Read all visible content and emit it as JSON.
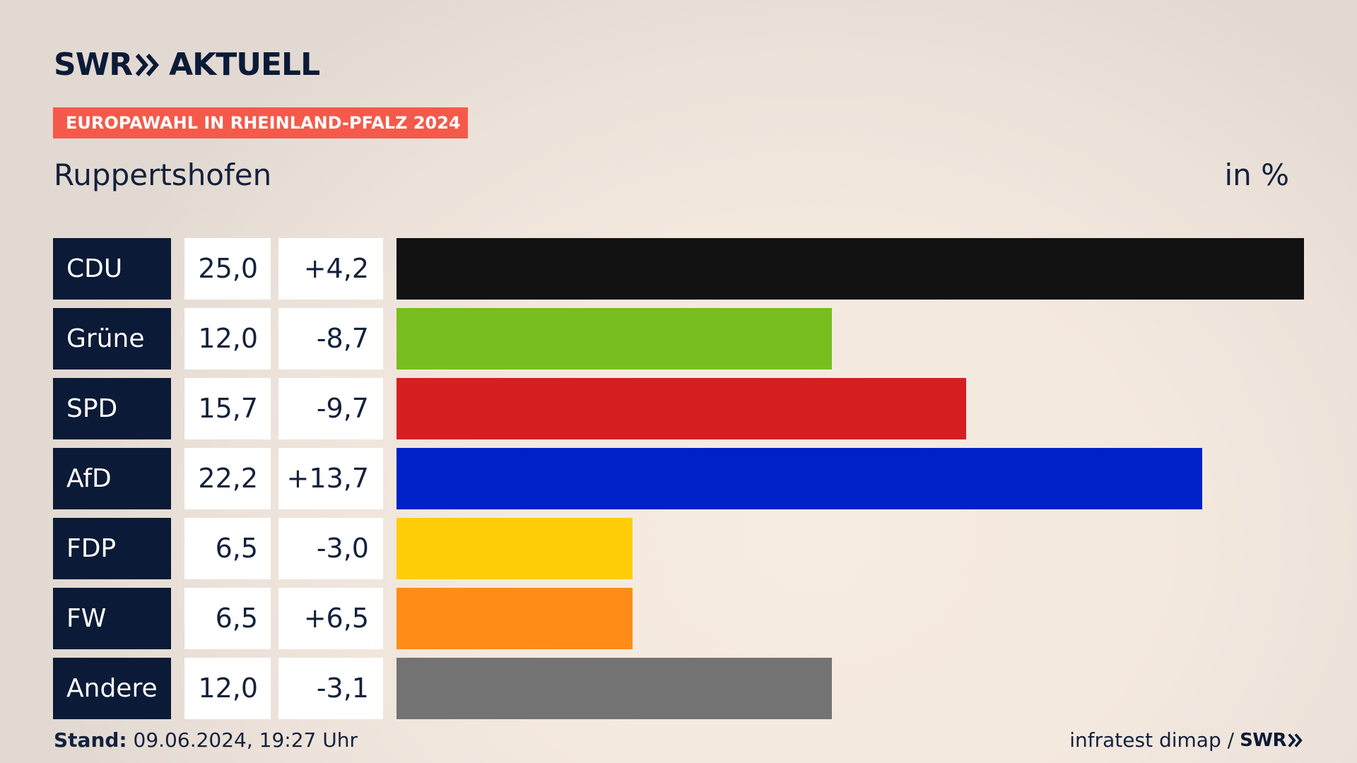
{
  "header": {
    "logo_brand": "SWR",
    "logo_product": "AKTUELL",
    "tag": "EUROPAWAHL IN RHEINLAND-PFALZ 2024",
    "subtitle": "Ruppertshofen",
    "unit": "in %"
  },
  "footer": {
    "stand_label": "Stand:",
    "stand_value": "09.06.2024, 19:27 Uhr",
    "source": "infratest dimap /",
    "source_brand": "SWR"
  },
  "colors": {
    "navy": "#0b1a36",
    "tag_red": "#f5594a"
  },
  "chart_data": {
    "type": "bar",
    "orientation": "horizontal",
    "categories": [
      "CDU",
      "Grüne",
      "SPD",
      "AfD",
      "FDP",
      "FW",
      "Andere"
    ],
    "values": [
      25.0,
      12.0,
      15.7,
      22.2,
      6.5,
      6.5,
      12.0
    ],
    "value_labels": [
      "25,0",
      "12,0",
      "15,7",
      "22,2",
      "6,5",
      "6,5",
      "12,0"
    ],
    "changes": [
      4.2,
      -8.7,
      -9.7,
      13.7,
      -3.0,
      6.5,
      -3.1
    ],
    "change_labels": [
      "+4,2",
      "-8,7",
      "-9,7",
      "+13,7",
      "-3,0",
      "+6,5",
      "-3,1"
    ],
    "bar_colors": [
      "#121212",
      "#78be1e",
      "#d61f20",
      "#0021c7",
      "#ffcd08",
      "#ff8c17",
      "#737373"
    ],
    "xlim": [
      0,
      25
    ],
    "grid": false,
    "legend": "none"
  }
}
